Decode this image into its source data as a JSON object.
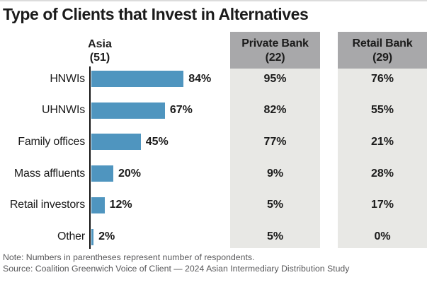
{
  "chart_data": {
    "type": "bar",
    "orientation": "horizontal",
    "title": "Type of Clients that Invest in Alternatives",
    "categories": [
      "HNWIs",
      "UHNWIs",
      "Family offices",
      "Mass affluents",
      "Retail investors",
      "Other"
    ],
    "bar_series": {
      "label": "Asia",
      "count": "(51)",
      "values": [
        84,
        67,
        45,
        20,
        12,
        2
      ]
    },
    "columns": [
      {
        "label": "Private Bank",
        "count": "(22)",
        "values": [
          95,
          82,
          77,
          9,
          5,
          5
        ]
      },
      {
        "label": "Retail Bank",
        "count": "(29)",
        "values": [
          76,
          55,
          21,
          28,
          17,
          0
        ]
      }
    ],
    "xlim": [
      0,
      100
    ],
    "value_suffix": "%",
    "grid": false,
    "legend_position": "none"
  },
  "footer": {
    "note": "Note: Numbers in parentheses represent number of respondents.",
    "source": "Source: Coalition Greenwich Voice of Client — 2024 Asian Intermediary Distribution Study"
  },
  "colors": {
    "bar": "#4f95bf",
    "column_header_bg": "#a8a8aa",
    "column_body_bg": "#e8e8e5",
    "text": "#1b1b1b",
    "footer_text": "#58585a",
    "top_rule": "#dcdcdc"
  }
}
